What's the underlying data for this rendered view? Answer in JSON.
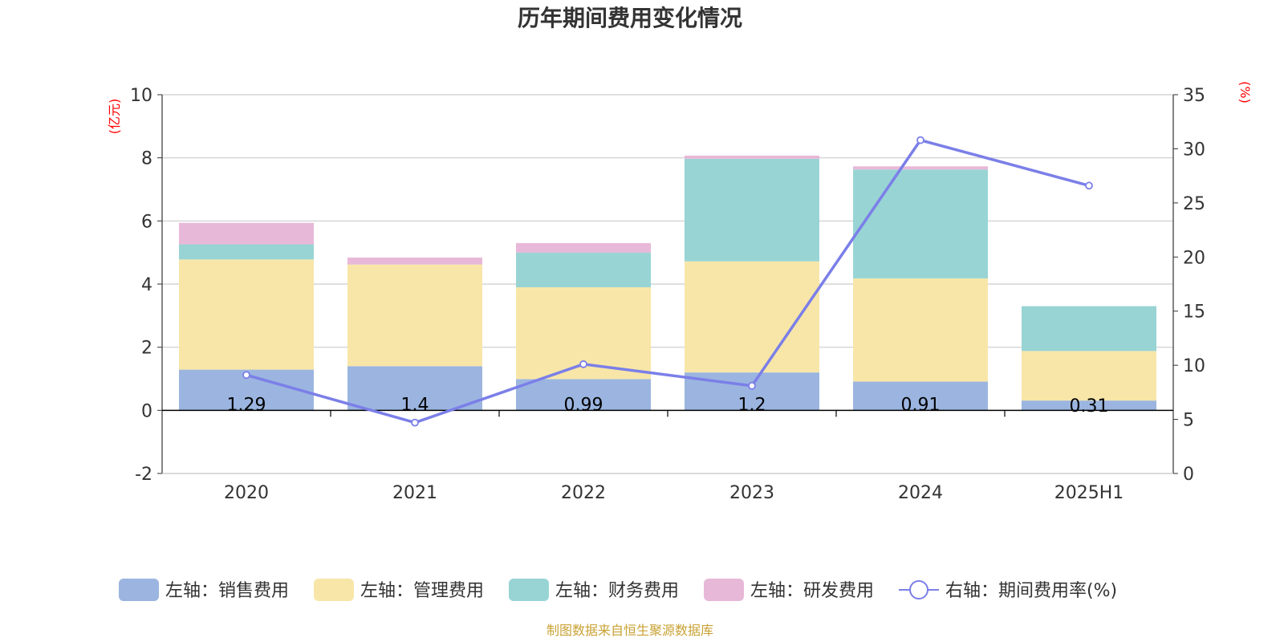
{
  "chart_data": {
    "type": "bar",
    "title": "历年期间费用变化情况",
    "categories": [
      "2020",
      "2021",
      "2022",
      "2023",
      "2024",
      "2025H1"
    ],
    "left_axis": {
      "unit": "(亿元)",
      "range": [
        -2,
        10
      ],
      "ticks": [
        "-2",
        "0",
        "2",
        "4",
        "6",
        "8",
        "10"
      ]
    },
    "right_axis": {
      "unit": "(%)",
      "range": [
        0,
        35
      ],
      "ticks": [
        "0",
        "5",
        "10",
        "15",
        "20",
        "25",
        "30",
        "35"
      ]
    },
    "series": [
      {
        "name": "左轴：销售费用",
        "kind": "bar",
        "axis": "left",
        "color": "#9bb5e0",
        "values": [
          1.29,
          1.4,
          0.99,
          1.2,
          0.91,
          0.31
        ],
        "labels": [
          "1.29",
          "1.4",
          "0.99",
          "1.2",
          "0.91",
          "0.31"
        ]
      },
      {
        "name": "左轴：管理费用",
        "kind": "bar",
        "axis": "left",
        "color": "#f8e6a8",
        "values": [
          3.49,
          3.22,
          2.91,
          3.52,
          3.27,
          1.57
        ]
      },
      {
        "name": "左轴：财务费用",
        "kind": "bar",
        "axis": "left",
        "color": "#98d4d4",
        "values": [
          0.48,
          0.0,
          1.1,
          3.25,
          3.45,
          1.42
        ]
      },
      {
        "name": "左轴：研发费用",
        "kind": "bar",
        "axis": "left",
        "color": "#e8b8d8",
        "values": [
          0.68,
          0.22,
          0.3,
          0.1,
          0.1,
          0.0
        ]
      },
      {
        "name": "右轴：期间费用率(%)",
        "kind": "line",
        "axis": "right",
        "color": "#7b7fe8",
        "values": [
          9.1,
          4.7,
          10.1,
          8.1,
          30.8,
          26.6
        ]
      }
    ],
    "grid": true,
    "legend": "bottom"
  },
  "source_text": "制图数据来自恒生聚源数据库"
}
